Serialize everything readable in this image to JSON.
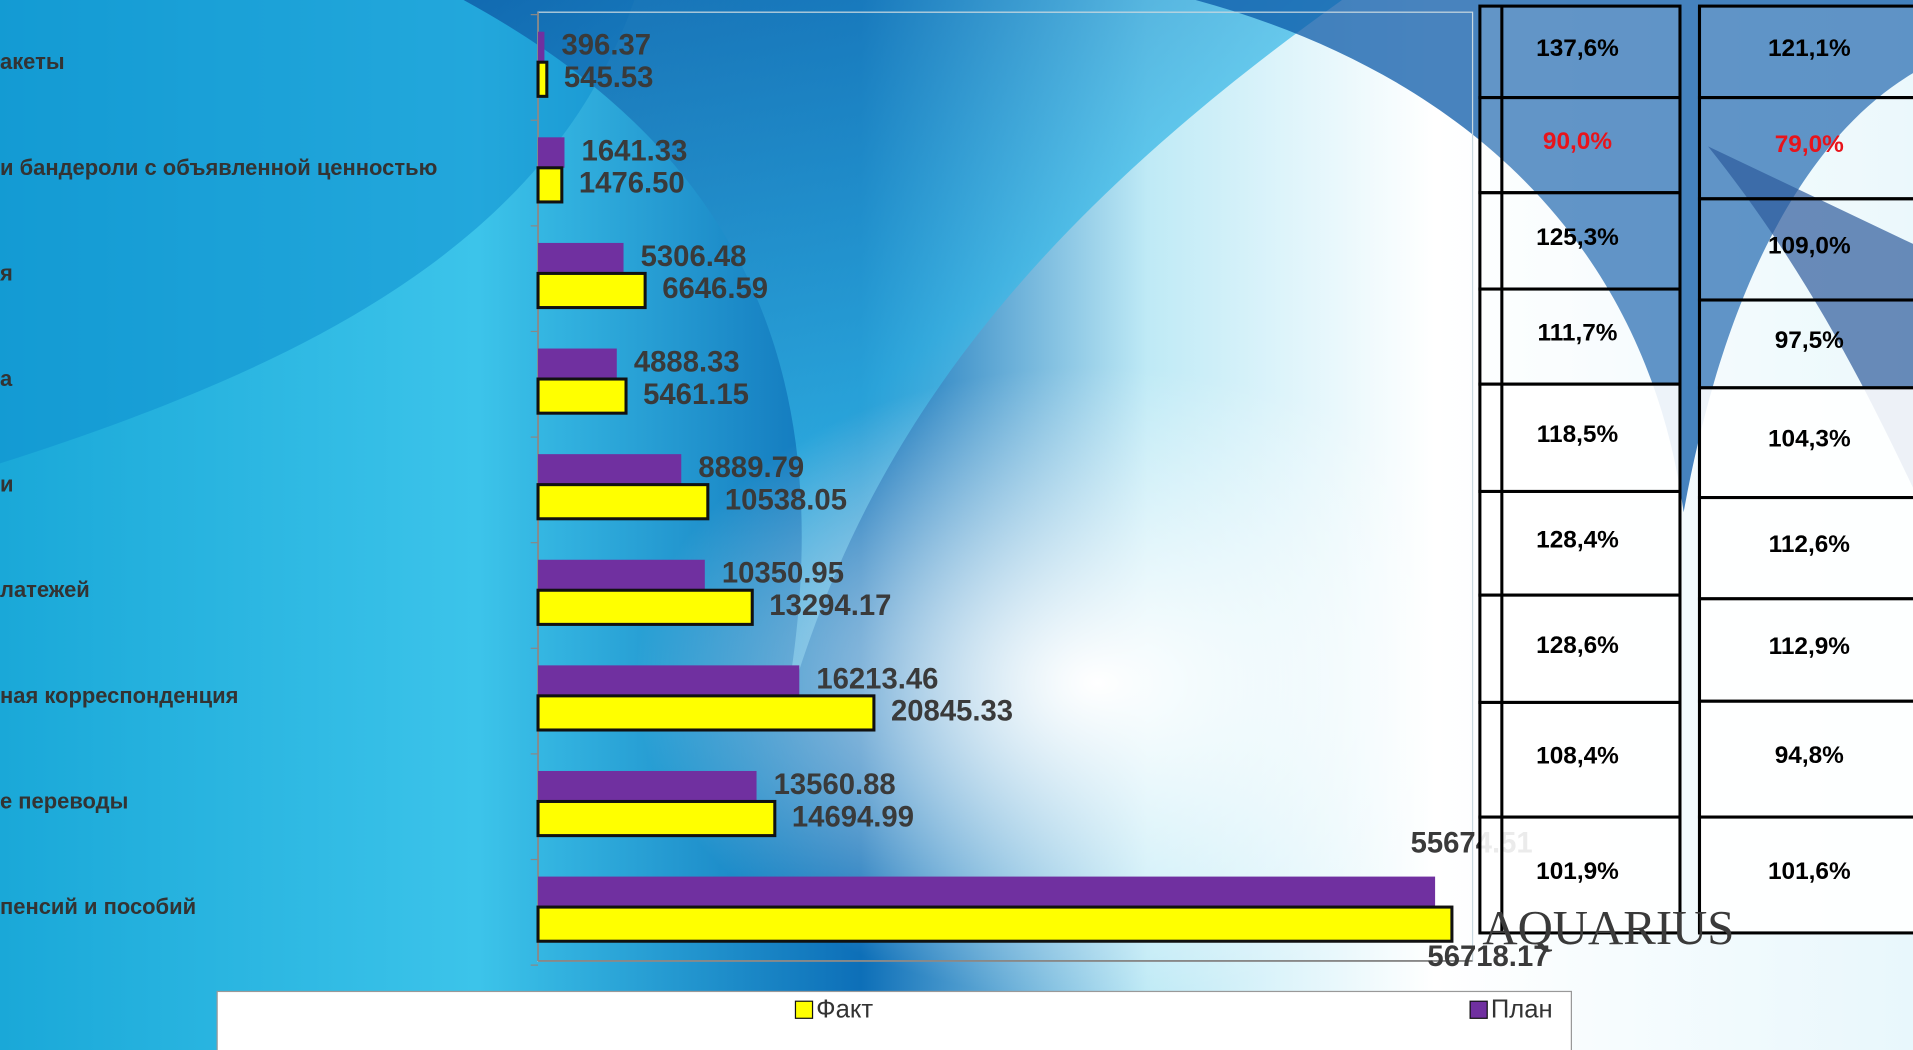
{
  "chart_data": {
    "type": "bar",
    "orientation": "horizontal",
    "categories": [
      "акеты",
      "и бандероли с объявленной ценностью",
      "я",
      "а",
      "и",
      "латежей",
      "ная корреспонденция",
      "е переводы",
      "пенсий и пособий"
    ],
    "series": [
      {
        "name": "План",
        "color": "#7030a0",
        "values": [
          396.37,
          1641.33,
          5306.48,
          4888.33,
          8889.79,
          10350.95,
          16213.46,
          13560.88,
          55674.51
        ],
        "value_labels": [
          "396.37",
          "1641.33",
          "5306.48",
          "4888.33",
          "8889.79",
          "10350.95",
          "16213.46",
          "13560.88",
          "55674.51"
        ]
      },
      {
        "name": "Факт",
        "color": "#ffff00",
        "values": [
          545.53,
          1476.5,
          6646.59,
          5461.15,
          10538.05,
          13294.17,
          20845.33,
          14694.99,
          56718.17
        ],
        "value_labels": [
          "545.53",
          "1476.50",
          "6646.59",
          "5461.15",
          "10538.05",
          "13294.17",
          "20845.33",
          "14694.99",
          "56718.17"
        ]
      }
    ],
    "xlim": [
      0,
      58000
    ],
    "legend": "bottom"
  },
  "tables": [
    {
      "cells": [
        "137,6%",
        "90,0%",
        "125,3%",
        "111,7%",
        "118,5%",
        "128,4%",
        "128,6%",
        "108,4%",
        "101,9%"
      ],
      "colors": [
        "#000000",
        "#e8141b",
        "#000000",
        "#000000",
        "#000000",
        "#000000",
        "#000000",
        "#000000",
        "#000000"
      ]
    },
    {
      "cells": [
        "121,1%",
        "79,0%",
        "109,0%",
        "97,5%",
        "104,3%",
        "112,6%",
        "112,9%",
        "94,8%",
        "101,6%"
      ],
      "colors": [
        "#000000",
        "#e8141b",
        "#000000",
        "#000000",
        "#000000",
        "#000000",
        "#000000",
        "#000000",
        "#000000"
      ]
    }
  ],
  "logo": "AQUARIUS"
}
